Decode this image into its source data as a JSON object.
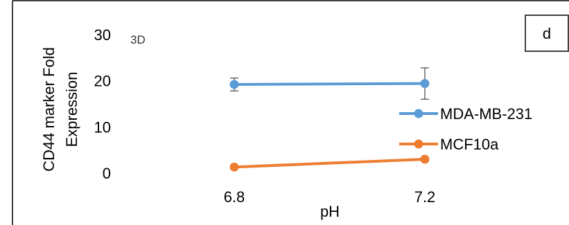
{
  "chart_data": {
    "type": "line",
    "title": "",
    "xlabel": "pH",
    "ylabel_lines": [
      "CD44 marker Fold",
      "Expression"
    ],
    "categories": [
      "6.8",
      "7.2"
    ],
    "ylim": [
      0,
      30
    ],
    "yticks": [
      0,
      10,
      20,
      30
    ],
    "grid": false,
    "legend_position": "right",
    "annotation": "3D",
    "panel_label": "d",
    "series": [
      {
        "name": "MDA-MB-231",
        "color": "#5b9bd5",
        "values": [
          19.2,
          19.4
        ],
        "errors": [
          1.4,
          3.4
        ]
      },
      {
        "name": "MCF10a",
        "color": "#ed7d31",
        "values": [
          1.3,
          3.0
        ],
        "errors": [
          0.2,
          0.3
        ]
      }
    ]
  }
}
